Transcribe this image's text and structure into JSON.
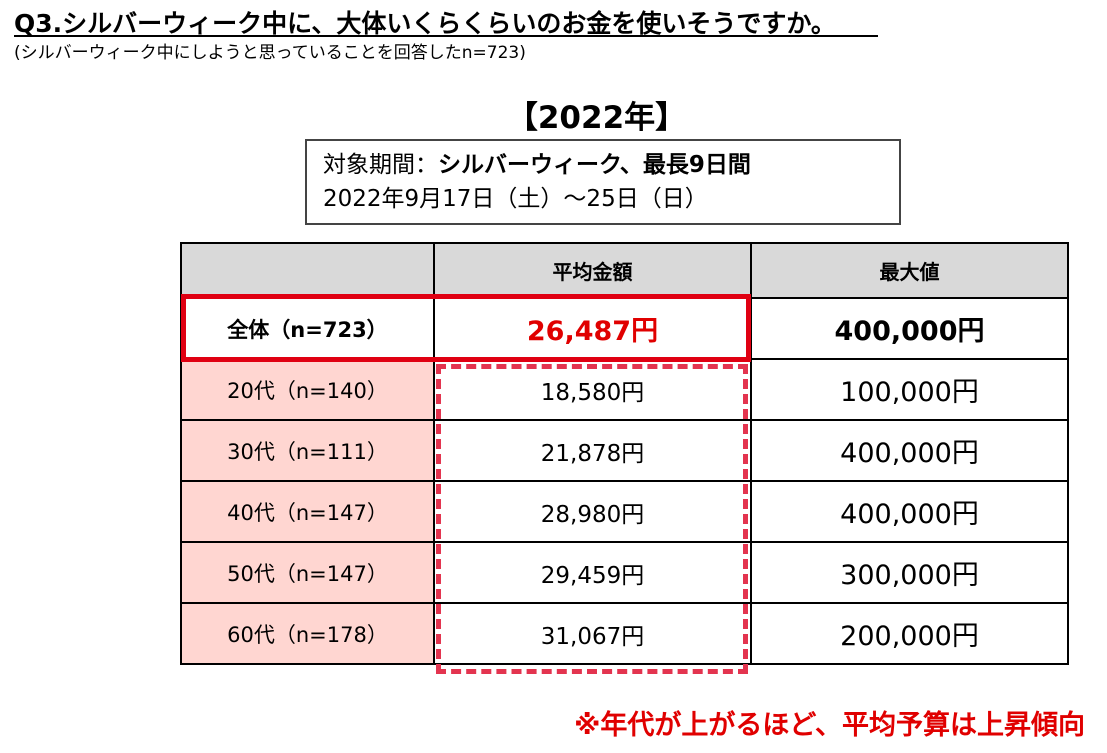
{
  "title": "Q3.シルバーウィーク中に、大体いくらくらいのお金を使いそうですか。",
  "subtitle": "(シルバーウィーク中にしようと思っていることを回答したn=723)",
  "year_label": "【2022年】",
  "period": {
    "label": "対象期間：",
    "value": "シルバーウィーク、最長9日間",
    "dates": "2022年9月17日（土）～25日（日）"
  },
  "table": {
    "headers": [
      "",
      "平均金額",
      "最大値"
    ],
    "rows": [
      {
        "label": "全体（n=723）",
        "avg": "26,487円",
        "max": "400,000円"
      },
      {
        "label": "20代（n=140）",
        "avg": "18,580円",
        "max": "100,000円"
      },
      {
        "label": "30代（n=111）",
        "avg": "21,878円",
        "max": "400,000円"
      },
      {
        "label": "40代（n=147）",
        "avg": "28,980円",
        "max": "400,000円"
      },
      {
        "label": "50代（n=147）",
        "avg": "29,459円",
        "max": "300,000円"
      },
      {
        "label": "60代（n=178）",
        "avg": "31,067円",
        "max": "200,000円"
      }
    ]
  },
  "note": "※年代が上がるほど、平均予算は上昇傾向",
  "colors": {
    "accent_red": "#e00000",
    "row_label_bg": "#ffd6d1",
    "header_bg": "#d9d9d9"
  }
}
